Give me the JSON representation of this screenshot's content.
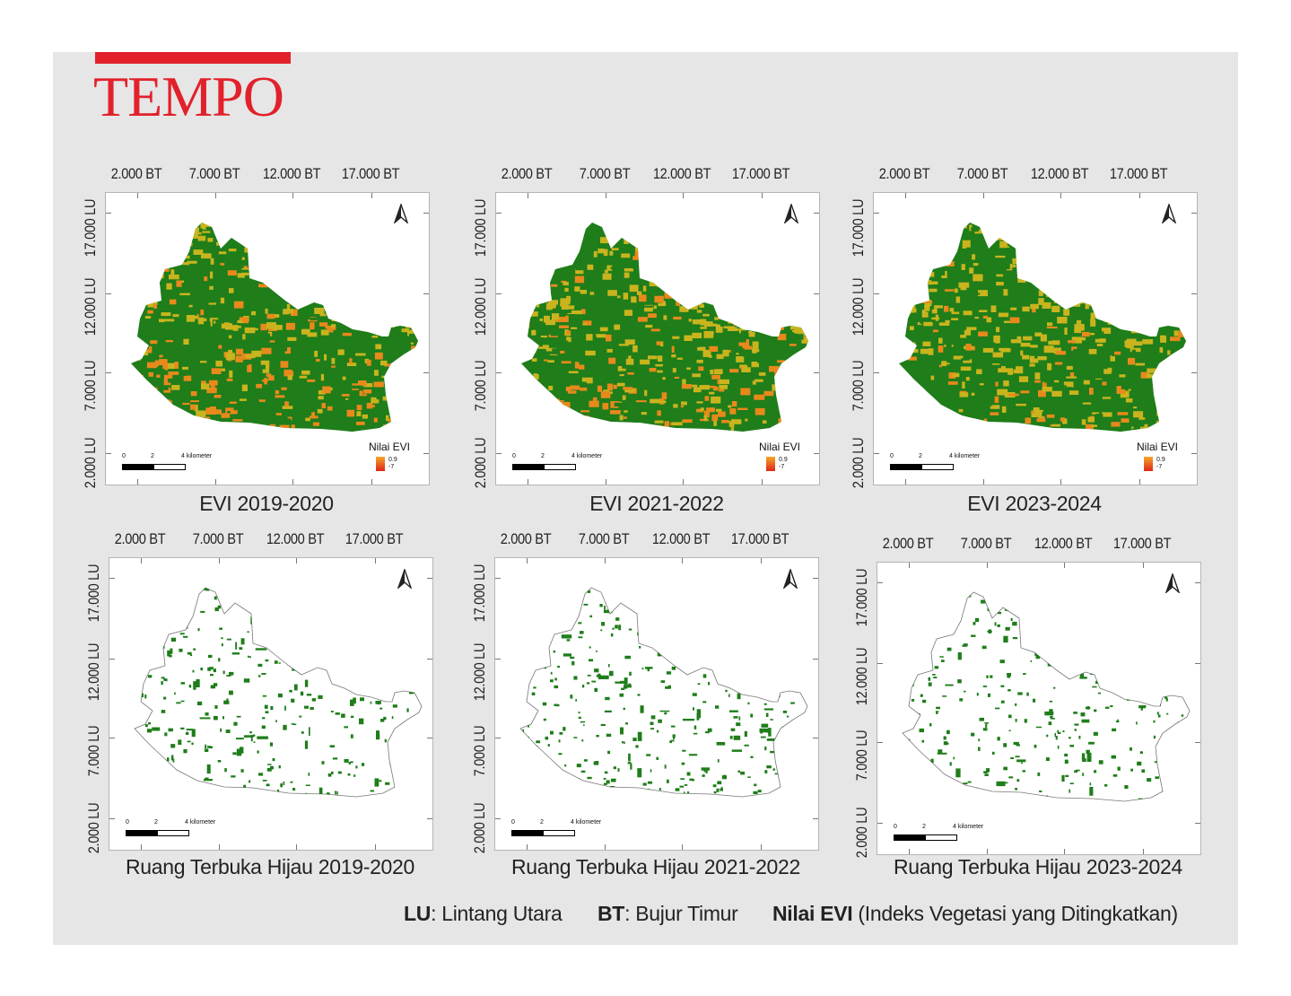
{
  "logo": {
    "text": "TEMPO",
    "color": "#e2212b"
  },
  "axes": {
    "x_ticks": [
      "2.000 BT",
      "7.000 BT",
      "12.000 BT",
      "17.000 BT"
    ],
    "y_ticks": [
      "17.000 LU",
      "12.000 LU",
      "7.000 LU",
      "2.000 LU"
    ]
  },
  "scale_bar": {
    "labels": [
      "0",
      "2",
      "4 kilometer"
    ]
  },
  "evi_legend": {
    "title": "Nilai EVI",
    "max": "0.9",
    "min": "-7",
    "colors": [
      "#f4a72a",
      "#e0261a"
    ]
  },
  "maps": [
    {
      "caption": "EVI 2019-2020",
      "kind": "evi"
    },
    {
      "caption": "EVI 2021-2022",
      "kind": "evi"
    },
    {
      "caption": "EVI 2023-2024",
      "kind": "evi"
    },
    {
      "caption": "Ruang Terbuka Hijau 2019-2020",
      "kind": "rth"
    },
    {
      "caption": "Ruang Terbuka Hijau 2021-2022",
      "kind": "rth"
    },
    {
      "caption": "Ruang Terbuka Hijau 2023-2024",
      "kind": "rth"
    }
  ],
  "colors": {
    "vegetation": "#1f7d1a",
    "low_evi": "#e8891c",
    "mid_evi": "#c9b41e"
  },
  "footer": {
    "lu_abbr": "LU",
    "lu_text": ": Lintang Utara",
    "bt_abbr": "BT",
    "bt_text": ": Bujur Timur",
    "evi_abbr": "Nilai EVI",
    "evi_text": " (Indeks Vegetasi yang Ditingkatkan)"
  },
  "north_icon": "north-arrow-icon"
}
